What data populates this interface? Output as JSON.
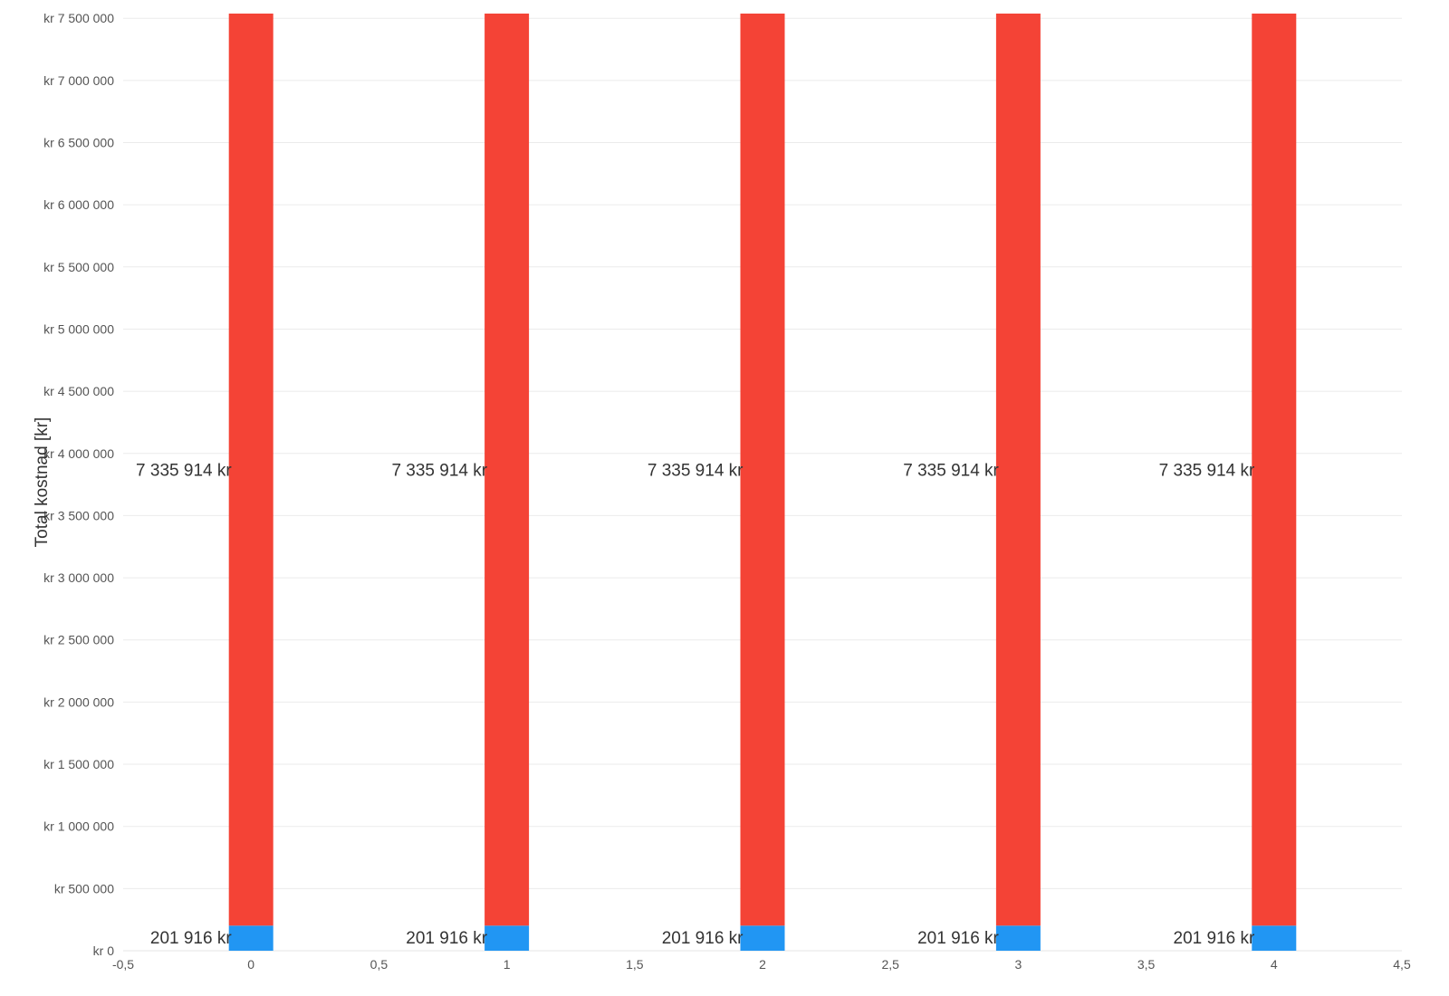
{
  "chart_data": {
    "type": "bar",
    "stacked": true,
    "title": "",
    "xlabel": "",
    "ylabel": "Total kostnad [kr]",
    "x": [
      0,
      1,
      2,
      3,
      4
    ],
    "xlim": [
      -0.5,
      4.5
    ],
    "ylim": [
      0,
      7537830
    ],
    "x_ticks": [
      -0.5,
      0,
      0.5,
      1,
      1.5,
      2,
      2.5,
      3,
      3.5,
      4,
      4.5
    ],
    "x_tick_labels": [
      "-0,5",
      "0",
      "0,5",
      "1",
      "1,5",
      "2",
      "2,5",
      "3",
      "3,5",
      "4",
      "4,5"
    ],
    "y_ticks": [
      0,
      500000,
      1000000,
      1500000,
      2000000,
      2500000,
      3000000,
      3500000,
      4000000,
      4500000,
      5000000,
      5500000,
      6000000,
      6500000,
      7000000,
      7500000
    ],
    "y_tick_labels": [
      "kr 0",
      "kr 500 000",
      "kr 1 000 000",
      "kr 1 500 000",
      "kr 2 000 000",
      "kr 2 500 000",
      "kr 3 000 000",
      "kr 3 500 000",
      "kr 4 000 000",
      "kr 4 500 000",
      "kr 5 000 000",
      "kr 5 500 000",
      "kr 6 000 000",
      "kr 6 500 000",
      "kr 7 000 000",
      "kr 7 500 000"
    ],
    "grid": true,
    "legend": "none",
    "series": [
      {
        "color": "#2196F3",
        "values": [
          201916,
          201916,
          201916,
          201916,
          201916
        ],
        "labels": [
          "201 916 kr",
          "201 916 kr",
          "201 916 kr",
          "201 916 kr",
          "201 916 kr"
        ]
      },
      {
        "color": "#F44336",
        "values": [
          7335914,
          7335914,
          7335914,
          7335914,
          7335914
        ],
        "labels": [
          "7 335 914 kr",
          "7 335 914 kr",
          "7 335 914 kr",
          "7 335 914 kr",
          "7 335 914 kr"
        ]
      }
    ]
  }
}
